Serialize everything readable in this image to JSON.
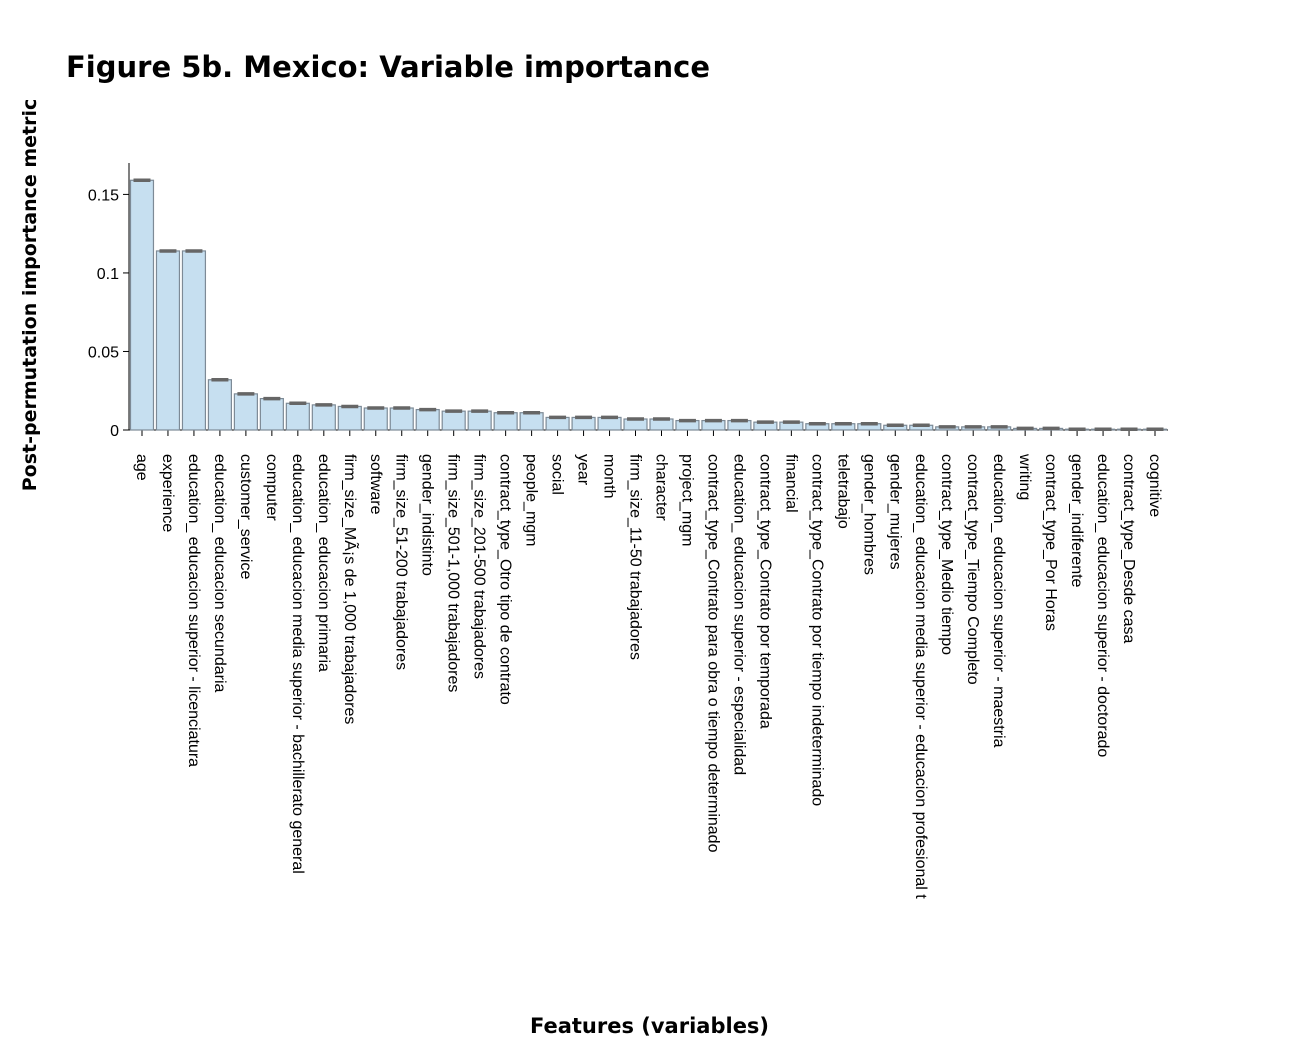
{
  "chart_data": {
    "type": "bar",
    "title": "Figure  5b. Mexico: Variable importance",
    "xlabel": "Features (variables)",
    "ylabel": "Post-permutation importance metric",
    "ylim": [
      0,
      0.17
    ],
    "yticks": [
      0,
      0.05,
      0.1,
      0.15
    ],
    "ytick_labels": [
      "0",
      "0.05",
      "0.1",
      "0.15"
    ],
    "grid": false,
    "error_bars": true,
    "bar_color": "#c6dff0",
    "bar_edge_color": "#7d8a96",
    "error_bar_color": "#666666",
    "categories": [
      "age",
      "experience",
      "education_ educacion superior - licenciatura",
      "education_ educacion secundaria",
      "customer_service",
      "computer",
      "education_ educacion media superior - bachillerato general",
      "education_ educacion primaria",
      "firm_size_MÃ¡s de 1,000 trabajadores",
      "software",
      "firm_size_51-200 trabajadores",
      "gender_indistinto",
      "firm_size_501-1,000 trabajadores",
      "firm_size_201-500 trabajadores",
      "contract_type_Otro tipo de contrato",
      "people_mgm",
      "social",
      "year",
      "month",
      "firm_size_11-50 trabajadores",
      "character",
      "project_mgm",
      "contract_type_Contrato para obra o tiempo determinado",
      "education_ educacion superior - especialidad",
      "contract_type_Contrato por temporada",
      "financial",
      "contract_type_Contrato por tiempo indeterminado",
      "teletrabajo",
      "gender_hombres",
      "gender_mujeres",
      "education_ educacion media superior - educacion profesional t",
      "contract_type_Medio tiempo",
      "contract_type_Tiempo Completo",
      "education_ educacion superior - maestria",
      "writing",
      "contract_type_Por Horas",
      "gender_indiferente",
      "education_ educacion superior - doctorado",
      "contract_type_Desde casa",
      "cognitive"
    ],
    "values": [
      0.159,
      0.114,
      0.114,
      0.032,
      0.023,
      0.02,
      0.017,
      0.016,
      0.015,
      0.014,
      0.014,
      0.013,
      0.012,
      0.012,
      0.011,
      0.011,
      0.008,
      0.008,
      0.008,
      0.007,
      0.007,
      0.006,
      0.006,
      0.006,
      0.005,
      0.005,
      0.004,
      0.004,
      0.004,
      0.003,
      0.003,
      0.002,
      0.002,
      0.002,
      0.001,
      0.001,
      0.0005,
      0.0005,
      0.0005,
      0.0005
    ]
  }
}
